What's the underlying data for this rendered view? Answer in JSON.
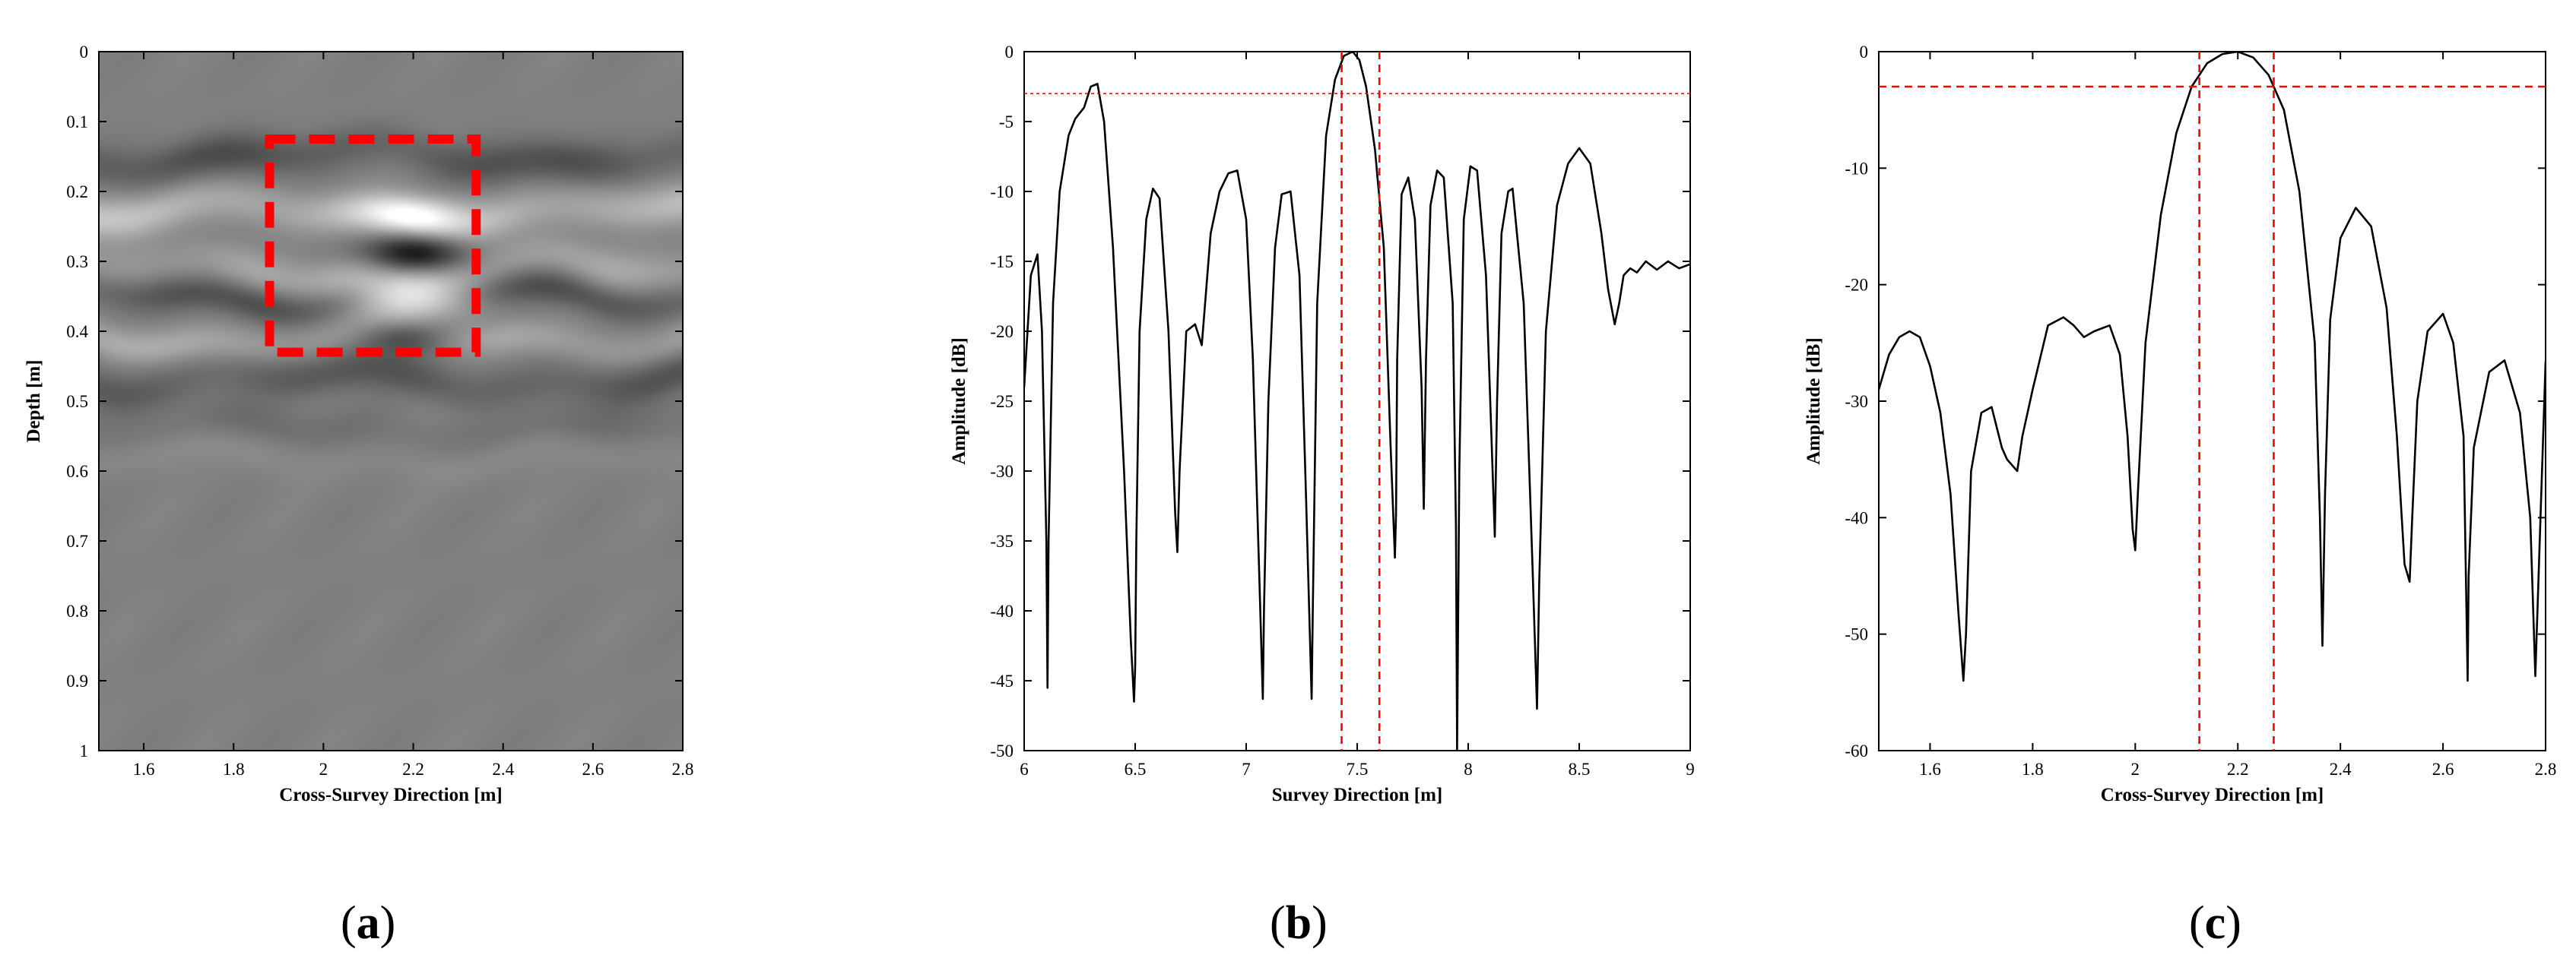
{
  "panel_labels": {
    "a": "a",
    "b": "b",
    "c": "c"
  },
  "colors": {
    "marker": "#ff0000",
    "trace": "#000000",
    "axis": "#000000"
  },
  "chart_data": [
    {
      "id": "a",
      "type": "heatmap",
      "xlabel": "Cross-Survey Direction [m]",
      "ylabel": "Depth [m]",
      "xlim": [
        1.5,
        2.8
      ],
      "ylim": [
        0,
        1
      ],
      "y_reversed": true,
      "xticks": [
        1.6,
        1.8,
        2,
        2.2,
        2.4,
        2.6,
        2.8
      ],
      "yticks": [
        0,
        0.1,
        0.2,
        0.3,
        0.4,
        0.5,
        0.6,
        0.7,
        0.8,
        0.9,
        1
      ],
      "colormap": "gray",
      "highlight_box": {
        "x": [
          1.88,
          2.34
        ],
        "y": [
          0.125,
          0.43
        ]
      },
      "bands": [
        {
          "depth": 0.15,
          "level": -0.4,
          "width": 0.03
        },
        {
          "depth": 0.23,
          "level": 0.55,
          "width": 0.03
        },
        {
          "depth": 0.31,
          "level": 0.3,
          "width": 0.03
        },
        {
          "depth": 0.35,
          "level": -0.4,
          "width": 0.025
        },
        {
          "depth": 0.41,
          "level": 0.35,
          "width": 0.025
        },
        {
          "depth": 0.47,
          "level": -0.35,
          "width": 0.03
        },
        {
          "depth": 0.54,
          "level": -0.15,
          "width": 0.03
        },
        {
          "depth": 0.58,
          "level": 0.1,
          "width": 0.03
        }
      ],
      "target": [
        {
          "x": 2.2,
          "depth": 0.29,
          "level": -1.0,
          "sx": 0.11,
          "sy": 0.03
        },
        {
          "x": 2.2,
          "depth": 0.345,
          "level": 1.0,
          "sx": 0.13,
          "sy": 0.035
        },
        {
          "x": 2.2,
          "depth": 0.235,
          "level": 0.6,
          "sx": 0.12,
          "sy": 0.028
        },
        {
          "x": 2.2,
          "depth": 0.405,
          "level": -0.6,
          "sx": 0.11,
          "sy": 0.025
        }
      ]
    },
    {
      "id": "b",
      "type": "line",
      "xlabel": "Survey Direction [m]",
      "ylabel": "Amplitude [dB]",
      "xlim": [
        6,
        9
      ],
      "ylim": [
        -50,
        0
      ],
      "xticks": [
        6,
        6.5,
        7,
        7.5,
        8,
        8.5,
        9
      ],
      "yticks": [
        0,
        -5,
        -10,
        -15,
        -20,
        -25,
        -30,
        -35,
        -40,
        -45,
        -50
      ],
      "hline": -3,
      "vlines": [
        7.43,
        7.6
      ],
      "series": [
        {
          "x": [
            6,
            6.03,
            6.06,
            6.08,
            6.1,
            6.105,
            6.11,
            6.13,
            6.16,
            6.2,
            6.23,
            6.27,
            6.3,
            6.33,
            6.36,
            6.4,
            6.45,
            6.48,
            6.495,
            6.5,
            6.505,
            6.52,
            6.55,
            6.58,
            6.61,
            6.65,
            6.68,
            6.69,
            6.7,
            6.73,
            6.77,
            6.8,
            6.84,
            6.88,
            6.92,
            6.96,
            7,
            7.03,
            7.06,
            7.075,
            7.08,
            7.1,
            7.13,
            7.16,
            7.2,
            7.24,
            7.27,
            7.295,
            7.3,
            7.32,
            7.36,
            7.4,
            7.44,
            7.48,
            7.51,
            7.54,
            7.58,
            7.62,
            7.65,
            7.67,
            7.675,
            7.68,
            7.7,
            7.73,
            7.76,
            7.79,
            7.8,
            7.81,
            7.83,
            7.86,
            7.89,
            7.93,
            7.945,
            7.95,
            7.96,
            7.98,
            8.01,
            8.04,
            8.08,
            8.11,
            8.12,
            8.13,
            8.15,
            8.18,
            8.2,
            8.25,
            8.29,
            8.31,
            8.32,
            8.35,
            8.4,
            8.45,
            8.5,
            8.55,
            8.6,
            8.63,
            8.66,
            8.68,
            8.7,
            8.73,
            8.76,
            8.8,
            8.85,
            8.9,
            8.95,
            9
          ],
          "y": [
            -24,
            -16,
            -14.5,
            -20,
            -35,
            -45.5,
            -35,
            -18,
            -10,
            -6,
            -4.8,
            -4,
            -2.5,
            -2.3,
            -5,
            -14,
            -30,
            -42,
            -46.5,
            -44,
            -35,
            -20,
            -12,
            -9.8,
            -10.5,
            -20,
            -33,
            -35.8,
            -30,
            -20,
            -19.5,
            -21,
            -13,
            -10,
            -8.7,
            -8.5,
            -12,
            -22,
            -38,
            -46.3,
            -40,
            -25,
            -14,
            -10.2,
            -10,
            -16,
            -32,
            -46.3,
            -40,
            -18,
            -6,
            -2,
            -0.3,
            0,
            -0.6,
            -2.5,
            -7,
            -14,
            -28,
            -36.2,
            -33,
            -22,
            -10.2,
            -9,
            -12,
            -24,
            -32.7,
            -22,
            -11,
            -8.5,
            -9,
            -18,
            -34,
            -49.9,
            -30,
            -12,
            -8.2,
            -8.5,
            -16,
            -30,
            -34.7,
            -25,
            -13,
            -10,
            -9.8,
            -18,
            -37,
            -47,
            -38,
            -20,
            -11,
            -8,
            -6.9,
            -8,
            -13,
            -17,
            -19.5,
            -18,
            -16,
            -15.5,
            -15.8,
            -15,
            -15.6,
            -15,
            -15.5,
            -15.2
          ]
        }
      ]
    },
    {
      "id": "c",
      "type": "line",
      "xlabel": "Cross-Survey Direction [m]",
      "ylabel": "Amplitude [dB]",
      "xlim": [
        1.5,
        2.8
      ],
      "ylim": [
        -60,
        0
      ],
      "xticks": [
        1.6,
        1.8,
        2,
        2.2,
        2.4,
        2.6,
        2.8
      ],
      "yticks": [
        0,
        -10,
        -20,
        -30,
        -40,
        -50,
        -60
      ],
      "hline": -3,
      "vlines": [
        2.125,
        2.27
      ],
      "series": [
        {
          "x": [
            1.5,
            1.52,
            1.54,
            1.56,
            1.58,
            1.6,
            1.62,
            1.64,
            1.655,
            1.665,
            1.67,
            1.68,
            1.7,
            1.72,
            1.74,
            1.75,
            1.77,
            1.78,
            1.8,
            1.83,
            1.86,
            1.88,
            1.9,
            1.92,
            1.95,
            1.97,
            1.985,
            1.995,
            2,
            2.005,
            2.02,
            2.05,
            2.08,
            2.11,
            2.14,
            2.17,
            2.2,
            2.23,
            2.26,
            2.29,
            2.32,
            2.35,
            2.36,
            2.365,
            2.37,
            2.38,
            2.4,
            2.43,
            2.46,
            2.49,
            2.51,
            2.525,
            2.535,
            2.54,
            2.55,
            2.57,
            2.6,
            2.62,
            2.64,
            2.648,
            2.65,
            2.66,
            2.69,
            2.72,
            2.75,
            2.77,
            2.78,
            2.79,
            2.8
          ],
          "y": [
            -29,
            -26,
            -24.5,
            -24,
            -24.5,
            -27,
            -31,
            -38,
            -48,
            -54,
            -50,
            -36,
            -31,
            -30.5,
            -34,
            -35,
            -36,
            -33,
            -29,
            -23.5,
            -22.8,
            -23.5,
            -24.5,
            -24,
            -23.5,
            -26,
            -33,
            -41,
            -42.8,
            -38,
            -25,
            -14,
            -7,
            -3,
            -1,
            -0.2,
            0,
            -0.5,
            -2,
            -5,
            -12,
            -25,
            -40,
            -51,
            -38,
            -23,
            -16,
            -13.4,
            -15,
            -22,
            -33,
            -44,
            -45.5,
            -40,
            -30,
            -24,
            -22.5,
            -25,
            -33,
            -54,
            -45,
            -34,
            -27.5,
            -26.5,
            -31,
            -40,
            -53.6,
            -40,
            -26.6
          ]
        }
      ]
    }
  ]
}
